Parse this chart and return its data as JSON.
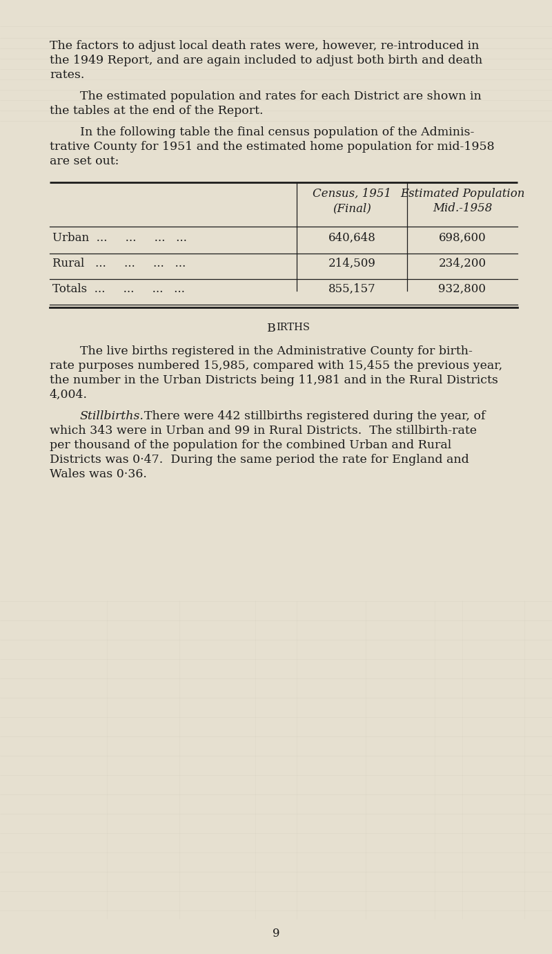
{
  "bg_color": "#e6e0d0",
  "text_color": "#1c1c1c",
  "page_number": "9",
  "para1_lines": [
    "The factors to adjust local death rates were, however, re-introduced in",
    "the 1949 Report, and are again included to adjust both birth and death",
    "rates."
  ],
  "para2_lines": [
    "The estimated population and rates for each District are shown in",
    "the tables at the end of the Report."
  ],
  "para3_lines": [
    "In the following table the final census population of the Adminis-",
    "trative County for 1951 and the estimated home population for mid-1958",
    "are set out:"
  ],
  "col2_hdr_line1": "Census, 1951",
  "col2_hdr_line2": "(Final)",
  "col3_hdr_line1": "Estimated Population",
  "col3_hdr_line2": "Mid.-1958",
  "row_labels": [
    "Urban  ...     ...     ...   ...",
    "Rural   ...     ...     ...   ...",
    "Totals  ...     ...     ...   ..."
  ],
  "row_vals1": [
    "640,648",
    "214,509",
    "855,157"
  ],
  "row_vals2": [
    "698,600",
    "234,200",
    "932,800"
  ],
  "births_line0": "The live births registered in the Administrative County for birth-",
  "births_lines": [
    "rate purposes numbered 15,985, compared with 15,455 the previous year,",
    "the number in the Urban Districts being 11,981 and in the Rural Districts",
    "4,004."
  ],
  "still_italic": "Stillbirths.",
  "still_rest": "  There were 442 stillbirths registered during the year, of",
  "still_lines": [
    "which 343 were in Urban and 99 in Rural Districts.  The stillbirth-rate",
    "per thousand of the population for the combined Urban and Rural",
    "Districts was 0·47.  During the same period the rate for England and",
    "Wales was 0·36."
  ],
  "fig_width": 8.0,
  "fig_height": 13.81,
  "dpi": 100
}
